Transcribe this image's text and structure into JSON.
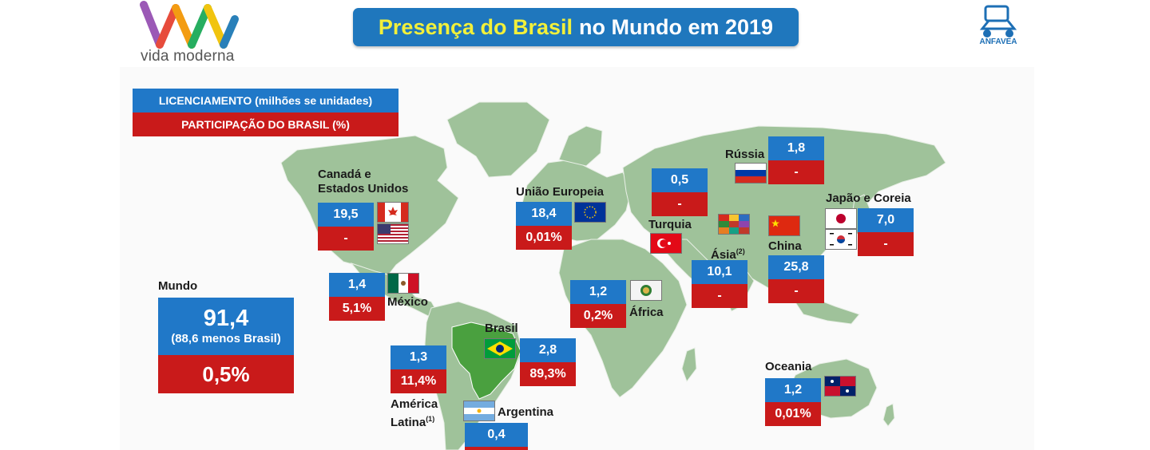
{
  "title": {
    "highlight": "Presença do Brasil",
    "rest": "no Mundo em 2019"
  },
  "brand": {
    "logo_text": "vida moderna",
    "anfavea_text": "ANFAVEA"
  },
  "legend": {
    "licensing": "LICENCIAMENTO (milhões se unidades)",
    "share": "PARTICIPAÇÃO DO BRASIL (%)"
  },
  "colors": {
    "blue": "#2078c8",
    "red": "#c91a1a",
    "map": "#9fc29a",
    "title_bg": "#1f77bd",
    "title_highlight": "#f2f03a"
  },
  "world": {
    "label": "Mundo",
    "licensing": "91,4",
    "note": "(88,6 menos Brasil)",
    "share": "0,5%"
  },
  "regions": {
    "canada_usa": {
      "name_line1": "Canadá e",
      "name_line2": "Estados Unidos",
      "licensing": "19,5",
      "share": "-",
      "flag_icons": [
        "canada-flag-icon",
        "usa-flag-icon"
      ]
    },
    "mexico": {
      "name": "México",
      "licensing": "1,4",
      "share": "5,1%",
      "flag_icon": "mexico-flag-icon"
    },
    "latin_america": {
      "name_line1": "América",
      "name_line2": "Latina",
      "footnote": "(1)",
      "licensing": "1,3",
      "share": "11,4%"
    },
    "brazil": {
      "name": "Brasil",
      "licensing": "2,8",
      "share": "89,3%",
      "flag_icon": "brazil-flag-icon"
    },
    "argentina": {
      "name": "Argentina",
      "licensing": "0,4",
      "flag_icon": "argentina-flag-icon"
    },
    "eu": {
      "name": "União Europeia",
      "licensing": "18,4",
      "share": "0,01%",
      "flag_icon": "eu-flag-icon"
    },
    "turkey": {
      "name": "Turquia",
      "licensing": "0,5",
      "share": "-",
      "flag_icon": "turkey-flag-icon"
    },
    "russia": {
      "name": "Rússia",
      "licensing": "1,8",
      "share": "-",
      "flag_icon": "russia-flag-icon"
    },
    "africa": {
      "name": "África",
      "licensing": "1,2",
      "share": "0,2%",
      "flag_icon": "africa-union-flag-icon"
    },
    "asia": {
      "name": "Ásia",
      "footnote": "(2)",
      "licensing": "10,1",
      "share": "-",
      "flag_icon": "asia-flags-icon"
    },
    "china": {
      "name": "China",
      "licensing": "25,8",
      "share": "-",
      "flag_icon": "china-flag-icon"
    },
    "japan_korea": {
      "name": "Japão e Coreia",
      "licensing": "7,0",
      "share": "-",
      "flag_icons": [
        "japan-flag-icon",
        "korea-flag-icon"
      ]
    },
    "oceania": {
      "name": "Oceania",
      "licensing": "1,2",
      "share": "0,01%",
      "flag_icon": "oceania-flags-icon"
    }
  }
}
